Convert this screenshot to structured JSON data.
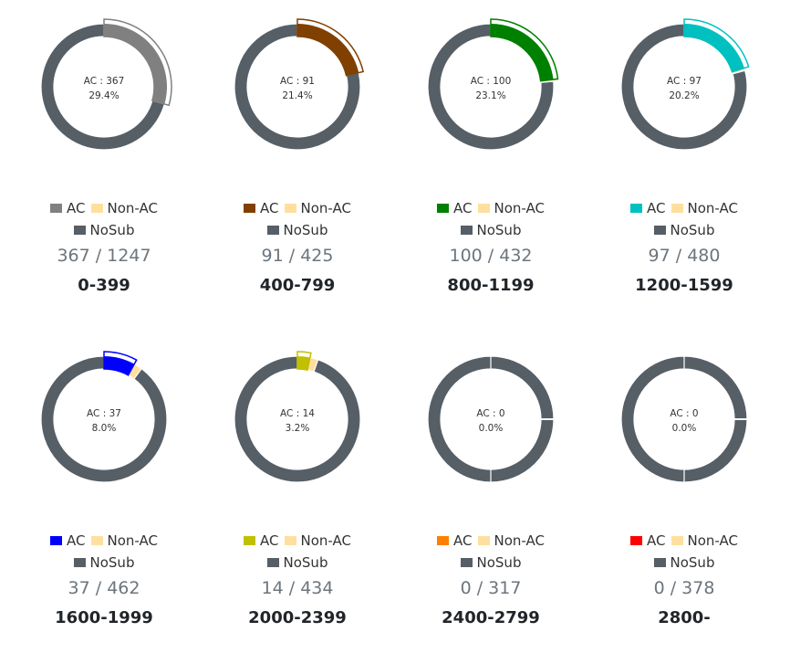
{
  "colors": {
    "noac": "#ffdf9f",
    "nosub": "#565e66"
  },
  "chart_data": [
    {
      "type": "pie",
      "range": "0-399",
      "ac": 367,
      "nonac": 0,
      "total": 1247,
      "center": "AC : 367",
      "pct": "29.4%",
      "count": "367 / 1247",
      "ac_color": "#808080"
    },
    {
      "type": "pie",
      "range": "400-799",
      "ac": 91,
      "nonac": 0,
      "total": 425,
      "center": "AC : 91",
      "pct": "21.4%",
      "count": "91 / 425",
      "ac_color": "#804000"
    },
    {
      "type": "pie",
      "range": "800-1199",
      "ac": 100,
      "nonac": 2,
      "total": 432,
      "center": "AC : 100",
      "pct": "23.1%",
      "count": "100 / 432",
      "ac_color": "#008000"
    },
    {
      "type": "pie",
      "range": "1200-1599",
      "ac": 97,
      "nonac": 3,
      "total": 480,
      "center": "AC : 97",
      "pct": "20.2%",
      "count": "97 / 480",
      "ac_color": "#00c0c0"
    },
    {
      "type": "pie",
      "range": "1600-1999",
      "ac": 37,
      "nonac": 10,
      "total": 462,
      "center": "AC : 37",
      "pct": "8.0%",
      "count": "37 / 462",
      "ac_color": "#0000ff"
    },
    {
      "type": "pie",
      "range": "2000-2399",
      "ac": 14,
      "nonac": 9,
      "total": 434,
      "center": "AC : 14",
      "pct": "3.2%",
      "count": "14 / 434",
      "ac_color": "#c0c000"
    },
    {
      "type": "pie",
      "range": "2400-2799",
      "ac": 0,
      "nonac": 0,
      "total": 317,
      "center": "AC : 0",
      "pct": "0.0%",
      "count": "0 / 317",
      "ac_color": "#ff8000"
    },
    {
      "type": "pie",
      "range": "2800-",
      "ac": 0,
      "nonac": 0,
      "total": 378,
      "center": "AC : 0",
      "pct": "0.0%",
      "count": "0 / 378",
      "ac_color": "#ff0000"
    }
  ],
  "legend": {
    "ac": "AC",
    "nonac": "Non-AC",
    "nosub": "NoSub"
  }
}
